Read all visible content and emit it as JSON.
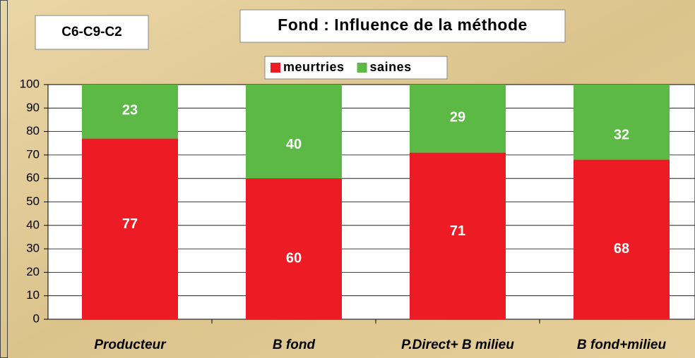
{
  "chart_data": {
    "type": "bar",
    "stacked": true,
    "title": "Fond :  Influence de la méthode",
    "annotation": "C6-C9-C2",
    "categories": [
      "Producteur",
      "B fond",
      "P.Direct+ B milieu",
      "B fond+milieu"
    ],
    "series": [
      {
        "name": "meurtries",
        "color": "#ed1c24",
        "values": [
          77,
          60,
          71,
          68
        ]
      },
      {
        "name": "saines",
        "color": "#5cb946",
        "values": [
          23,
          40,
          29,
          32
        ]
      }
    ],
    "ylim": [
      0,
      100
    ],
    "yticks": [
      0,
      10,
      20,
      30,
      40,
      50,
      60,
      70,
      80,
      90,
      100
    ],
    "grid": true,
    "legend": "top"
  }
}
